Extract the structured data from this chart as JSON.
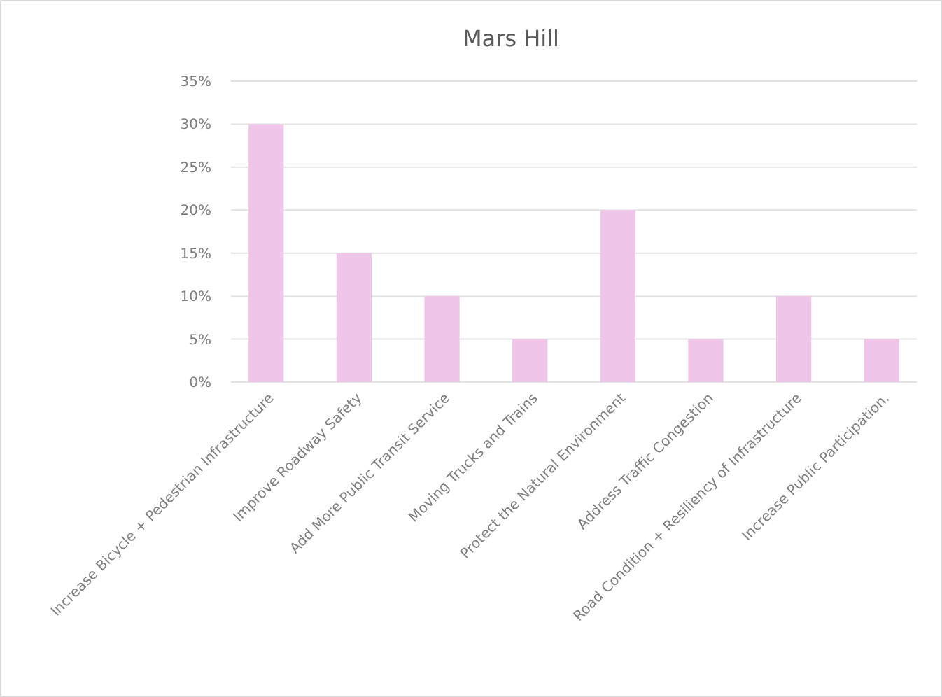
{
  "chart_data": {
    "type": "bar",
    "title": "Mars Hill",
    "categories": [
      "Increase Bicycle + Pedestrian Infrastructure",
      "Improve Roadway Safety",
      "Add More Public Transit Service",
      "Moving Trucks and Trains",
      "Protect the Natural Environment",
      "Address Traffic Congestion",
      "Road Condition + Resiliency of Infrastructure",
      "Increase Public Participation."
    ],
    "values": [
      30,
      15,
      10,
      5,
      20,
      5,
      10,
      5
    ],
    "color": "#efc6e9",
    "ylim": [
      0,
      35
    ],
    "yticks": [
      {
        "value": 0,
        "label": "0%"
      },
      {
        "value": 5,
        "label": "5%"
      },
      {
        "value": 10,
        "label": "10%"
      },
      {
        "value": 15,
        "label": "15%"
      },
      {
        "value": 20,
        "label": "20%"
      },
      {
        "value": 25,
        "label": "25%"
      },
      {
        "value": 30,
        "label": "30%"
      },
      {
        "value": 35,
        "label": "35%"
      }
    ],
    "grid": "y"
  }
}
